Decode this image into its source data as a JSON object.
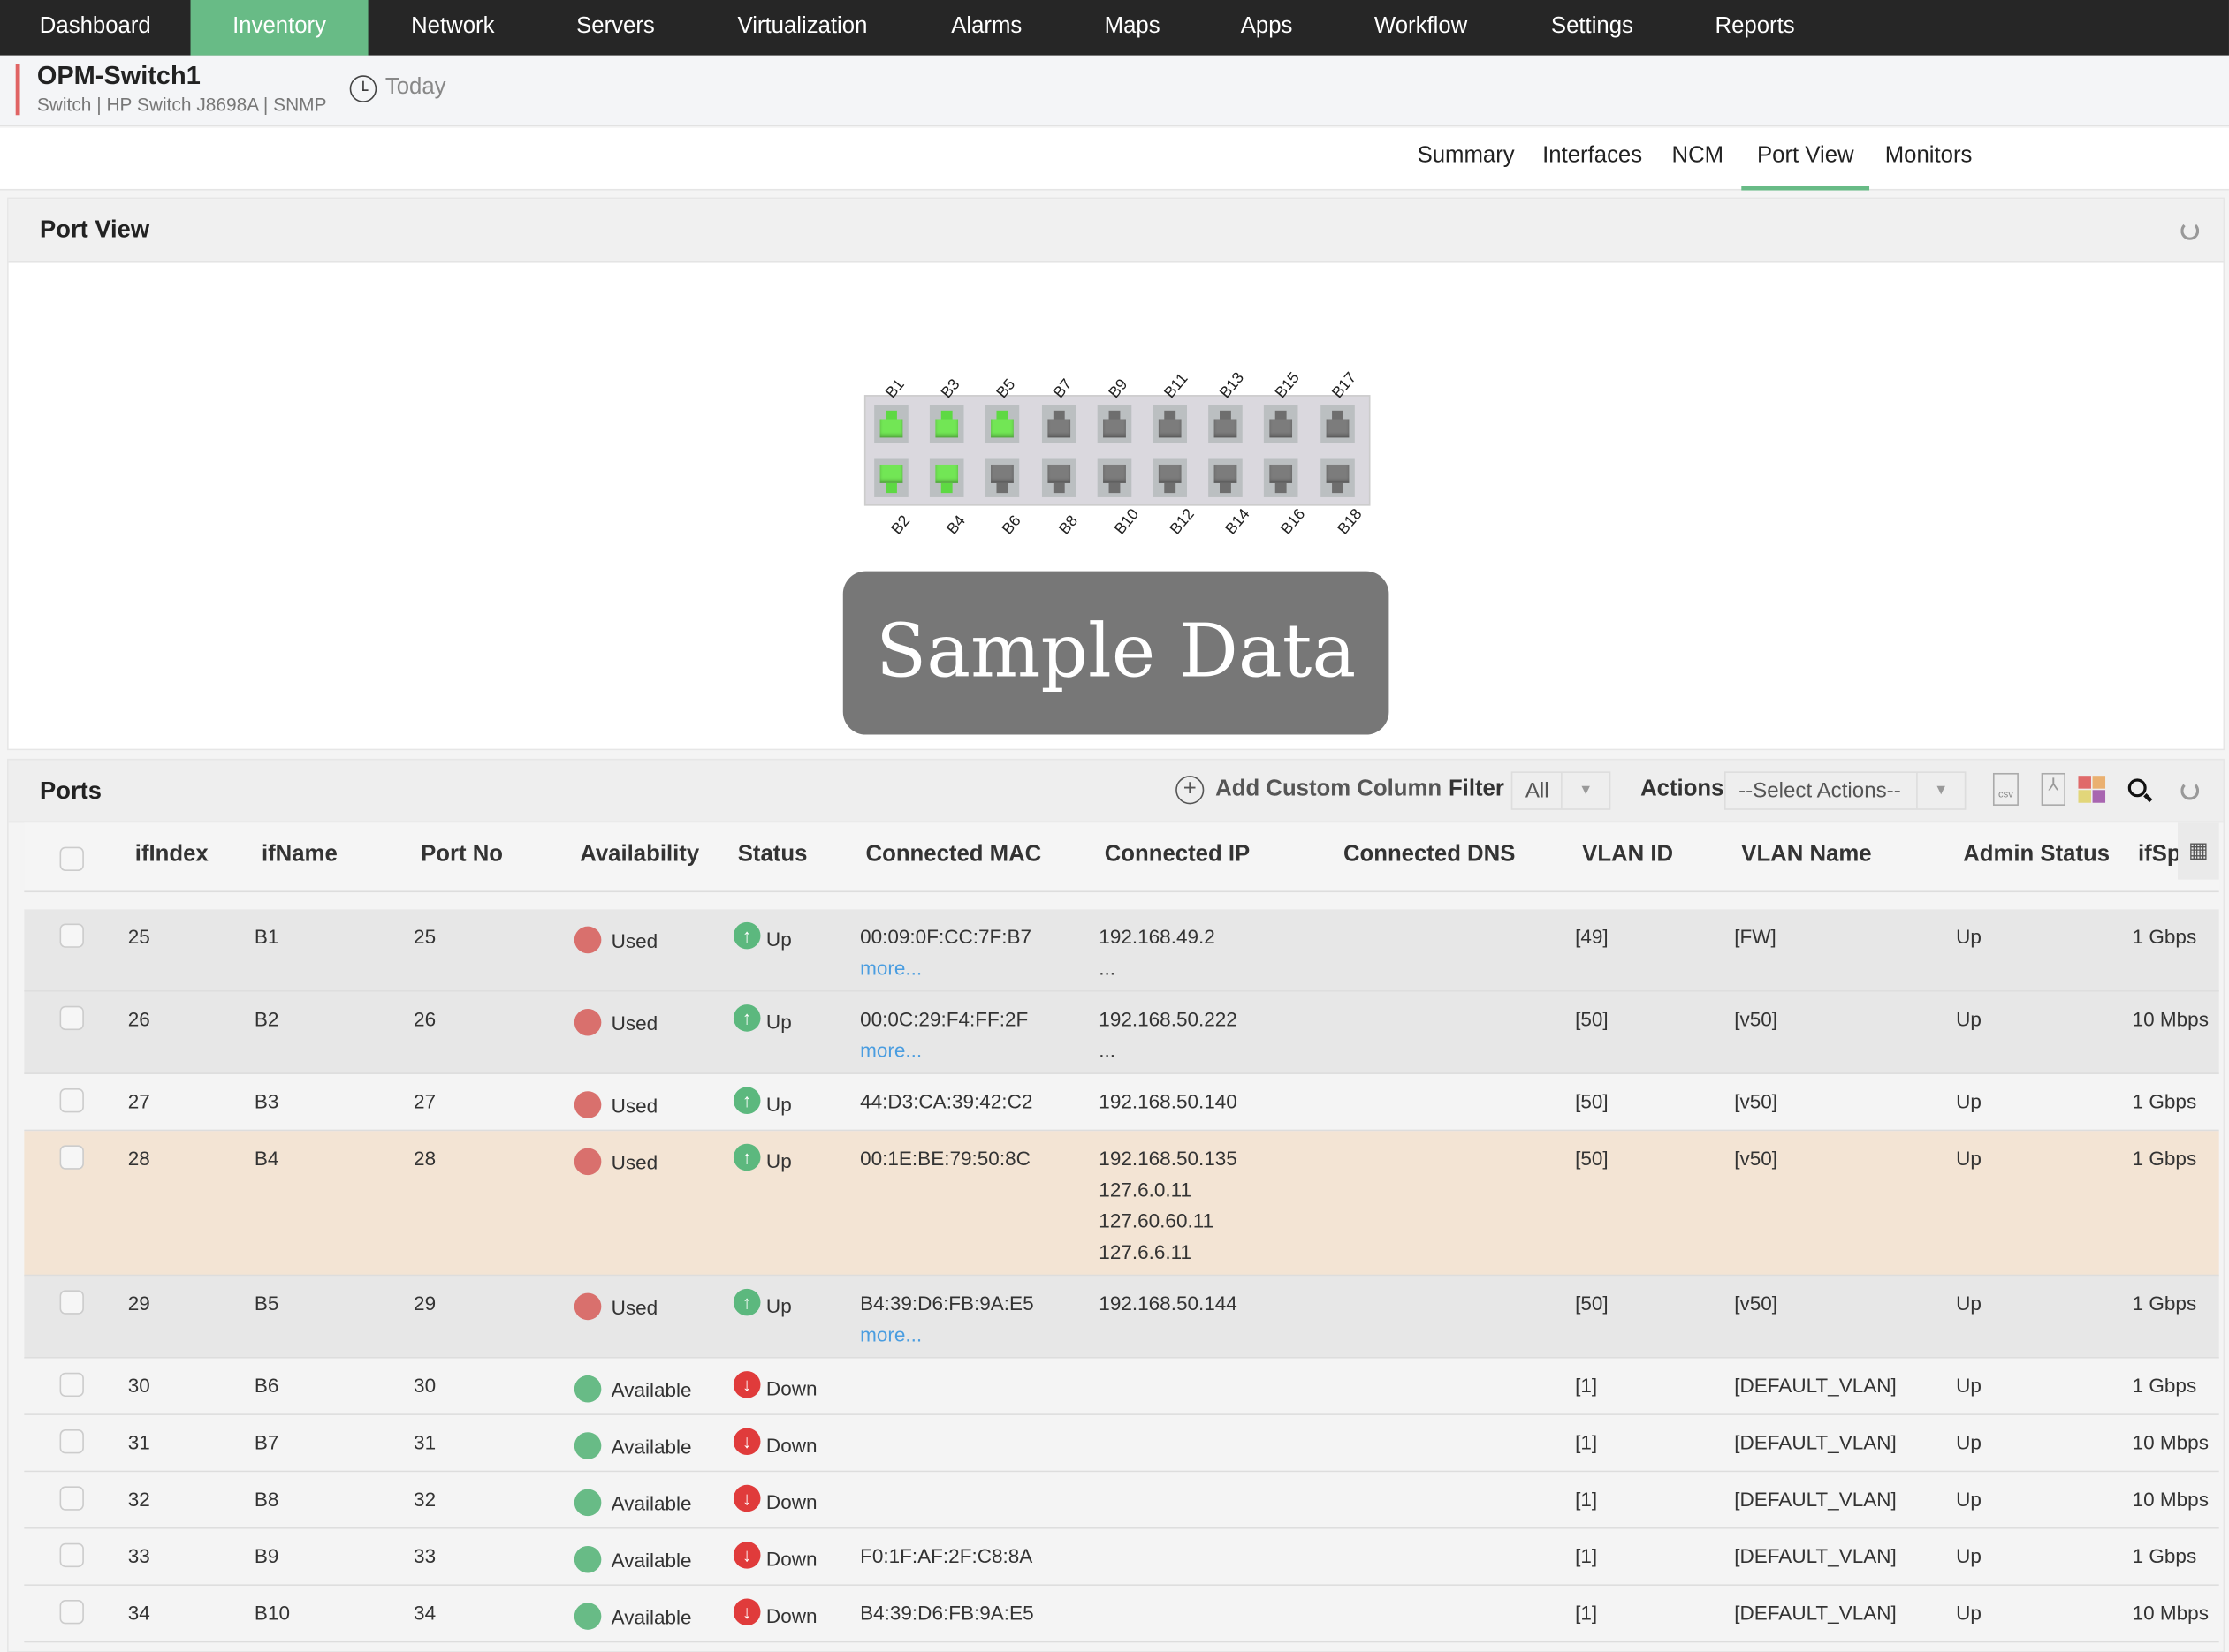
{
  "nav": {
    "items": [
      "Dashboard",
      "Inventory",
      "Network",
      "Servers",
      "Virtualization",
      "Alarms",
      "Maps",
      "Apps",
      "Workflow",
      "Settings",
      "Reports"
    ],
    "active": "Inventory",
    "accent": "#68bb86"
  },
  "device": {
    "name": "OPM-Switch1",
    "subtitle": "Switch | HP Switch J8698A  | SNMP",
    "period": "Today"
  },
  "tabs": {
    "items": [
      "Summary",
      "Interfaces",
      "NCM",
      "Port View",
      "Monitors"
    ],
    "active": "Port View"
  },
  "port_view": {
    "title": "Port View",
    "ports": [
      {
        "name": "B1",
        "used": true
      },
      {
        "name": "B2",
        "used": true
      },
      {
        "name": "B3",
        "used": true
      },
      {
        "name": "B4",
        "used": true
      },
      {
        "name": "B5",
        "used": true
      },
      {
        "name": "B6",
        "used": false
      },
      {
        "name": "B7",
        "used": false
      },
      {
        "name": "B8",
        "used": false
      },
      {
        "name": "B9",
        "used": false
      },
      {
        "name": "B10",
        "used": false
      },
      {
        "name": "B11",
        "used": false
      },
      {
        "name": "B12",
        "used": false
      },
      {
        "name": "B13",
        "used": false
      },
      {
        "name": "B14",
        "used": false
      },
      {
        "name": "B15",
        "used": false
      },
      {
        "name": "B16",
        "used": false
      },
      {
        "name": "B17",
        "used": false
      },
      {
        "name": "B18",
        "used": false
      }
    ]
  },
  "ports": {
    "title": "Ports",
    "add_column": "Add Custom Column",
    "filter_label": "Filter",
    "filter_value": "All",
    "actions_label": "Actions",
    "actions_value": "--Select Actions--",
    "columns": [
      "ifIndex",
      "ifName",
      "Port No",
      "Availability",
      "Status",
      "Connected MAC",
      "Connected IP",
      "Connected DNS",
      "VLAN ID",
      "VLAN Name",
      "Admin Status",
      "ifSpe"
    ],
    "rows": [
      {
        "ifIndex": "25",
        "ifName": "B1",
        "port": "25",
        "avail": "Used",
        "status": "Up",
        "mac": "00:09:0F:CC:7F:B7",
        "mac_more": "more...",
        "ip": [
          "192.168.49.2",
          "..."
        ],
        "dns": "",
        "vlan_id": "[49]",
        "vlan_name": "[FW]",
        "admin": "Up",
        "speed": "1 Gbps"
      },
      {
        "ifIndex": "26",
        "ifName": "B2",
        "port": "26",
        "avail": "Used",
        "status": "Up",
        "mac": "00:0C:29:F4:FF:2F",
        "mac_more": "more...",
        "ip": [
          "192.168.50.222",
          "..."
        ],
        "dns": "",
        "vlan_id": "[50]",
        "vlan_name": "[v50]",
        "admin": "Up",
        "speed": "10 Mbps"
      },
      {
        "ifIndex": "27",
        "ifName": "B3",
        "port": "27",
        "avail": "Used",
        "status": "Up",
        "mac": "44:D3:CA:39:42:C2",
        "ip": [
          "192.168.50.140"
        ],
        "dns": "",
        "vlan_id": "[50]",
        "vlan_name": "[v50]",
        "admin": "Up",
        "speed": "1 Gbps"
      },
      {
        "ifIndex": "28",
        "ifName": "B4",
        "port": "28",
        "avail": "Used",
        "status": "Up",
        "mac": "00:1E:BE:79:50:8C",
        "ip": [
          "192.168.50.135",
          "127.6.0.11",
          "127.60.60.11",
          "127.6.6.11"
        ],
        "dns": "",
        "vlan_id": "[50]",
        "vlan_name": "[v50]",
        "admin": "Up",
        "speed": "1 Gbps"
      },
      {
        "ifIndex": "29",
        "ifName": "B5",
        "port": "29",
        "avail": "Used",
        "status": "Up",
        "mac": "B4:39:D6:FB:9A:E5",
        "mac_more": "more...",
        "ip": [
          "192.168.50.144"
        ],
        "dns": "",
        "vlan_id": "[50]",
        "vlan_name": "[v50]",
        "admin": "Up",
        "speed": "1 Gbps"
      },
      {
        "ifIndex": "30",
        "ifName": "B6",
        "port": "30",
        "avail": "Available",
        "status": "Down",
        "mac": "",
        "ip": [],
        "dns": "",
        "vlan_id": "[1]",
        "vlan_name": "[DEFAULT_VLAN]",
        "admin": "Up",
        "speed": "1 Gbps"
      },
      {
        "ifIndex": "31",
        "ifName": "B7",
        "port": "31",
        "avail": "Available",
        "status": "Down",
        "mac": "",
        "ip": [],
        "dns": "",
        "vlan_id": "[1]",
        "vlan_name": "[DEFAULT_VLAN]",
        "admin": "Up",
        "speed": "10 Mbps"
      },
      {
        "ifIndex": "32",
        "ifName": "B8",
        "port": "32",
        "avail": "Available",
        "status": "Down",
        "mac": "",
        "ip": [],
        "dns": "",
        "vlan_id": "[1]",
        "vlan_name": "[DEFAULT_VLAN]",
        "admin": "Up",
        "speed": "10 Mbps"
      },
      {
        "ifIndex": "33",
        "ifName": "B9",
        "port": "33",
        "avail": "Available",
        "status": "Down",
        "mac": "F0:1F:AF:2F:C8:8A",
        "ip": [],
        "dns": "",
        "vlan_id": "[1]",
        "vlan_name": "[DEFAULT_VLAN]",
        "admin": "Up",
        "speed": "1 Gbps"
      },
      {
        "ifIndex": "34",
        "ifName": "B10",
        "port": "34",
        "avail": "Available",
        "status": "Down",
        "mac": "B4:39:D6:FB:9A:E5",
        "ip": [],
        "dns": "",
        "vlan_id": "[1]",
        "vlan_name": "[DEFAULT_VLAN]",
        "admin": "Up",
        "speed": "10 Mbps"
      }
    ]
  },
  "colors": {
    "used": "#d9706d",
    "available": "#68bb86",
    "up": "#5cb87e",
    "down": "#e03b3b",
    "highlight_row": "#f3e4d4"
  },
  "watermark": "Sample Data"
}
